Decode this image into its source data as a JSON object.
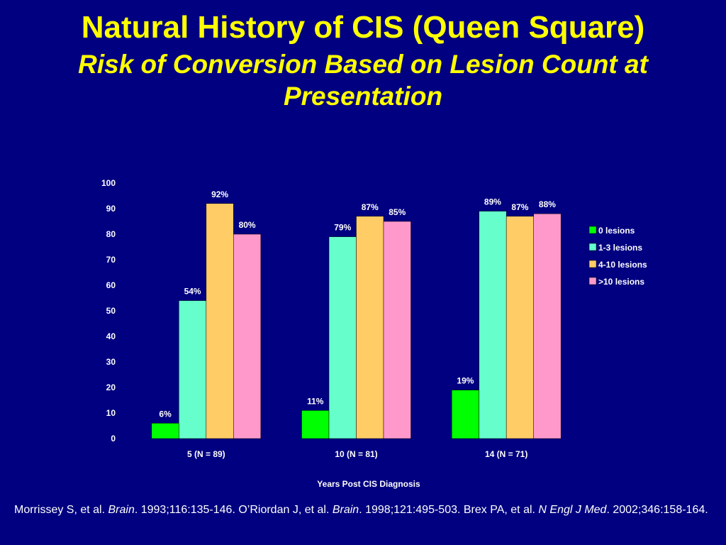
{
  "slide": {
    "title": "Natural History of CIS (Queen Square)",
    "subtitle": "Risk of Conversion Based on Lesion Count at Presentation"
  },
  "citation": {
    "part1": "Morrissey S, et al. ",
    "journal1": "Brain",
    "part2": ". 1993;116:135-146. O’Riordan J, et al. ",
    "journal2": "Brain",
    "part3": ". 1998;121:495-503. Brex PA, et al. ",
    "journal3": "N Engl J Med",
    "part4": ". 2002;346:158-164."
  },
  "colors": {
    "background": "#000080",
    "title": "#ffff00",
    "text": "#ffffff"
  },
  "chart_data": {
    "type": "bar",
    "xlabel": "Years Post CIS Diagnosis",
    "ylabel": "",
    "ylim": [
      0,
      100
    ],
    "yticks": [
      0,
      10,
      20,
      30,
      40,
      50,
      60,
      70,
      80,
      90,
      100
    ],
    "grid": false,
    "legend_position": "right",
    "categories": [
      "5 (N = 89)",
      "10 (N = 81)",
      "14 (N = 71)"
    ],
    "series": [
      {
        "name": "0 lesions",
        "color": "#00ff00",
        "values": [
          6,
          11,
          19
        ],
        "labels": [
          "6%",
          "11%",
          "19%"
        ]
      },
      {
        "name": "1-3 lesions",
        "color": "#66ffcc",
        "values": [
          54,
          79,
          89
        ],
        "labels": [
          "54%",
          "79%",
          "89%"
        ]
      },
      {
        "name": "4-10 lesions",
        "color": "#ffcc66",
        "values": [
          92,
          87,
          87
        ],
        "labels": [
          "92%",
          "87%",
          "87%"
        ]
      },
      {
        "name": ">10 lesions",
        "color": "#ff99cc",
        "values": [
          80,
          85,
          88
        ],
        "labels": [
          "80%",
          "85%",
          "88%"
        ]
      }
    ]
  }
}
